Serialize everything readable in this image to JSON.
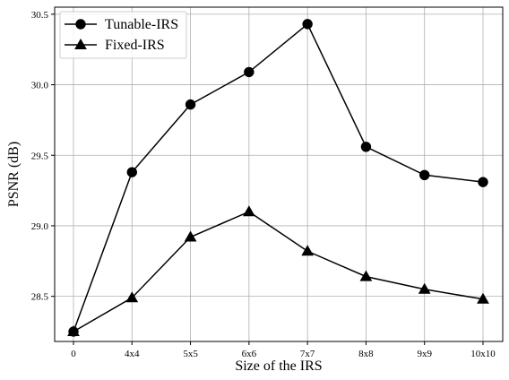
{
  "chart_data": {
    "type": "line",
    "title": "",
    "xlabel": "Size of the IRS",
    "ylabel": "PSNR (dB)",
    "categories": [
      "0",
      "4x4",
      "5x5",
      "6x6",
      "7x7",
      "8x8",
      "9x9",
      "10x10"
    ],
    "yticks": [
      "28.5",
      "29.0",
      "29.5",
      "30.0",
      "30.5"
    ],
    "ylim": [
      28.18,
      30.55
    ],
    "grid": true,
    "legend_position": "top-left",
    "series": [
      {
        "name": "Tunable-IRS",
        "marker": "circle",
        "color": "#000000",
        "values": [
          28.25,
          29.38,
          29.86,
          30.09,
          30.43,
          29.56,
          29.36,
          29.31
        ]
      },
      {
        "name": "Fixed-IRS",
        "marker": "triangle",
        "color": "#000000",
        "values": [
          28.25,
          28.49,
          28.92,
          29.1,
          28.82,
          28.64,
          28.55,
          28.48
        ]
      }
    ]
  }
}
